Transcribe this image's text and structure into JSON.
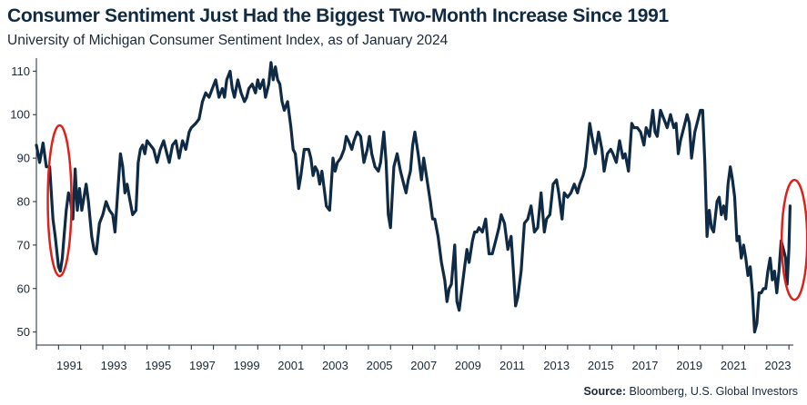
{
  "title": "Consumer Sentiment Just Had the Biggest Two-Month Increase Since 1991",
  "subtitle": "University of Michigan Consumer Sentiment Index, as of January 2024",
  "source": {
    "label": "Source:",
    "text": "Bloomberg, U.S. Global Investors"
  },
  "colors": {
    "line": "#0f2a44",
    "highlight": "#e0201b",
    "axis": "#1b2838"
  },
  "chart_data": {
    "type": "line",
    "title": "Consumer Sentiment Just Had the Biggest Two-Month Increase Since 1991",
    "subtitle": "University of Michigan Consumer Sentiment Index, as of January 2024",
    "xlabel": "",
    "ylabel": "",
    "xlim": [
      1990.0,
      2024.2
    ],
    "ylim": [
      47,
      113
    ],
    "y_ticks": [
      50,
      60,
      70,
      80,
      90,
      100,
      110
    ],
    "x_ticks": [
      1991,
      1993,
      1995,
      1997,
      1999,
      2001,
      2003,
      2005,
      2007,
      2009,
      2011,
      2013,
      2015,
      2017,
      2019,
      2021,
      2023
    ],
    "grid": false,
    "legend": "none",
    "series": [
      {
        "values": [
          [
            1990.0,
            93
          ],
          [
            1990.15,
            89
          ],
          [
            1990.3,
            93.5
          ],
          [
            1990.45,
            88
          ],
          [
            1990.6,
            88
          ],
          [
            1990.75,
            76
          ],
          [
            1990.85,
            72
          ],
          [
            1991.0,
            65
          ],
          [
            1991.08,
            64
          ],
          [
            1991.17,
            67
          ],
          [
            1991.25,
            72
          ],
          [
            1991.35,
            78
          ],
          [
            1991.45,
            82
          ],
          [
            1991.55,
            80
          ],
          [
            1991.65,
            76
          ],
          [
            1991.75,
            87.5
          ],
          [
            1991.85,
            78
          ],
          [
            1991.95,
            83
          ],
          [
            1992.05,
            78
          ],
          [
            1992.15,
            81
          ],
          [
            1992.25,
            84
          ],
          [
            1992.35,
            80
          ],
          [
            1992.5,
            72
          ],
          [
            1992.6,
            69
          ],
          [
            1992.7,
            68
          ],
          [
            1992.85,
            75
          ],
          [
            1993.0,
            77
          ],
          [
            1993.15,
            80
          ],
          [
            1993.3,
            78
          ],
          [
            1993.45,
            77
          ],
          [
            1993.55,
            73
          ],
          [
            1993.7,
            84
          ],
          [
            1993.8,
            91
          ],
          [
            1993.9,
            88
          ],
          [
            1994.0,
            82
          ],
          [
            1994.1,
            84
          ],
          [
            1994.2,
            81
          ],
          [
            1994.35,
            77
          ],
          [
            1994.5,
            78
          ],
          [
            1994.6,
            89
          ],
          [
            1994.7,
            92
          ],
          [
            1994.8,
            93
          ],
          [
            1994.9,
            91
          ],
          [
            1995.0,
            94
          ],
          [
            1995.15,
            93
          ],
          [
            1995.3,
            92
          ],
          [
            1995.45,
            89
          ],
          [
            1995.6,
            92
          ],
          [
            1995.75,
            94
          ],
          [
            1995.9,
            91
          ],
          [
            1996.0,
            89
          ],
          [
            1996.15,
            93
          ],
          [
            1996.3,
            94
          ],
          [
            1996.45,
            90
          ],
          [
            1996.6,
            94
          ],
          [
            1996.75,
            92
          ],
          [
            1996.9,
            96
          ],
          [
            1997.0,
            97
          ],
          [
            1997.2,
            98
          ],
          [
            1997.35,
            99
          ],
          [
            1997.5,
            103
          ],
          [
            1997.65,
            105
          ],
          [
            1997.8,
            104
          ],
          [
            1997.95,
            106
          ],
          [
            1998.1,
            108
          ],
          [
            1998.25,
            104
          ],
          [
            1998.4,
            106
          ],
          [
            1998.5,
            104
          ],
          [
            1998.6,
            108
          ],
          [
            1998.75,
            110
          ],
          [
            1998.85,
            106
          ],
          [
            1998.95,
            104
          ],
          [
            1999.1,
            108
          ],
          [
            1999.25,
            105
          ],
          [
            1999.4,
            103
          ],
          [
            1999.5,
            104
          ],
          [
            1999.6,
            106
          ],
          [
            1999.75,
            107
          ],
          [
            1999.9,
            105
          ],
          [
            2000.0,
            108
          ],
          [
            2000.1,
            106
          ],
          [
            2000.25,
            108
          ],
          [
            2000.35,
            104
          ],
          [
            2000.5,
            107
          ],
          [
            2000.6,
            112
          ],
          [
            2000.7,
            108
          ],
          [
            2000.8,
            111
          ],
          [
            2000.9,
            108
          ],
          [
            2001.0,
            107
          ],
          [
            2001.1,
            103
          ],
          [
            2001.2,
            101
          ],
          [
            2001.35,
            103
          ],
          [
            2001.5,
            97
          ],
          [
            2001.6,
            92
          ],
          [
            2001.7,
            91
          ],
          [
            2001.85,
            83
          ],
          [
            2001.95,
            86
          ],
          [
            2002.1,
            92
          ],
          [
            2002.3,
            92
          ],
          [
            2002.4,
            90
          ],
          [
            2002.5,
            86
          ],
          [
            2002.6,
            88
          ],
          [
            2002.7,
            87
          ],
          [
            2002.8,
            84
          ],
          [
            2002.9,
            87
          ],
          [
            2003.0,
            83
          ],
          [
            2003.1,
            79
          ],
          [
            2003.25,
            78
          ],
          [
            2003.4,
            90
          ],
          [
            2003.5,
            87
          ],
          [
            2003.6,
            89
          ],
          [
            2003.75,
            90
          ],
          [
            2003.9,
            92
          ],
          [
            2004.0,
            95
          ],
          [
            2004.1,
            94
          ],
          [
            2004.25,
            92
          ],
          [
            2004.35,
            94
          ],
          [
            2004.5,
            96
          ],
          [
            2004.65,
            95
          ],
          [
            2004.8,
            89
          ],
          [
            2004.95,
            92
          ],
          [
            2005.05,
            95
          ],
          [
            2005.15,
            91
          ],
          [
            2005.3,
            88
          ],
          [
            2005.45,
            87
          ],
          [
            2005.55,
            89
          ],
          [
            2005.7,
            96
          ],
          [
            2005.8,
            89
          ],
          [
            2005.9,
            77
          ],
          [
            2006.0,
            74
          ],
          [
            2006.15,
            88
          ],
          [
            2006.3,
            91
          ],
          [
            2006.45,
            87
          ],
          [
            2006.6,
            84
          ],
          [
            2006.7,
            82
          ],
          [
            2006.8,
            85
          ],
          [
            2006.9,
            87
          ],
          [
            2007.0,
            93
          ],
          [
            2007.1,
            96
          ],
          [
            2007.25,
            91
          ],
          [
            2007.4,
            85
          ],
          [
            2007.5,
            90
          ],
          [
            2007.65,
            85
          ],
          [
            2007.8,
            80
          ],
          [
            2007.9,
            76
          ],
          [
            2008.0,
            76
          ],
          [
            2008.15,
            72
          ],
          [
            2008.3,
            66
          ],
          [
            2008.45,
            62
          ],
          [
            2008.55,
            57
          ],
          [
            2008.65,
            60
          ],
          [
            2008.75,
            61
          ],
          [
            2008.9,
            70
          ],
          [
            2009.0,
            57
          ],
          [
            2009.1,
            55
          ],
          [
            2009.2,
            59
          ],
          [
            2009.35,
            65
          ],
          [
            2009.45,
            69
          ],
          [
            2009.55,
            66
          ],
          [
            2009.7,
            71
          ],
          [
            2009.8,
            73
          ],
          [
            2009.9,
            73
          ],
          [
            2010.0,
            74
          ],
          [
            2010.15,
            73
          ],
          [
            2010.3,
            76
          ],
          [
            2010.45,
            68
          ],
          [
            2010.6,
            68
          ],
          [
            2010.75,
            71
          ],
          [
            2010.9,
            74
          ],
          [
            2011.0,
            77
          ],
          [
            2011.15,
            75
          ],
          [
            2011.3,
            69
          ],
          [
            2011.45,
            72
          ],
          [
            2011.55,
            64
          ],
          [
            2011.65,
            56
          ],
          [
            2011.75,
            58
          ],
          [
            2011.9,
            64
          ],
          [
            2012.05,
            75
          ],
          [
            2012.2,
            76
          ],
          [
            2012.35,
            79
          ],
          [
            2012.5,
            73
          ],
          [
            2012.65,
            74
          ],
          [
            2012.8,
            82
          ],
          [
            2012.95,
            73
          ],
          [
            2013.05,
            76
          ],
          [
            2013.2,
            77
          ],
          [
            2013.35,
            84
          ],
          [
            2013.5,
            85
          ],
          [
            2013.6,
            82
          ],
          [
            2013.75,
            76
          ],
          [
            2013.85,
            82
          ],
          [
            2014.0,
            81
          ],
          [
            2014.15,
            82
          ],
          [
            2014.3,
            84
          ],
          [
            2014.45,
            82
          ],
          [
            2014.55,
            84
          ],
          [
            2014.7,
            86
          ],
          [
            2014.8,
            88
          ],
          [
            2014.9,
            93
          ],
          [
            2015.0,
            98
          ],
          [
            2015.1,
            95
          ],
          [
            2015.25,
            91
          ],
          [
            2015.4,
            96
          ],
          [
            2015.55,
            92
          ],
          [
            2015.65,
            87
          ],
          [
            2015.8,
            91
          ],
          [
            2015.95,
            92
          ],
          [
            2016.05,
            91
          ],
          [
            2016.2,
            89
          ],
          [
            2016.35,
            94
          ],
          [
            2016.5,
            90
          ],
          [
            2016.6,
            91
          ],
          [
            2016.75,
            87
          ],
          [
            2016.9,
            98
          ],
          [
            2017.0,
            97
          ],
          [
            2017.15,
            97
          ],
          [
            2017.3,
            96
          ],
          [
            2017.45,
            93
          ],
          [
            2017.55,
            97
          ],
          [
            2017.7,
            95
          ],
          [
            2017.85,
            101
          ],
          [
            2017.95,
            96
          ],
          [
            2018.05,
            95
          ],
          [
            2018.2,
            101
          ],
          [
            2018.35,
            99
          ],
          [
            2018.5,
            97
          ],
          [
            2018.65,
            100
          ],
          [
            2018.8,
            97
          ],
          [
            2018.9,
            98
          ],
          [
            2019.0,
            91
          ],
          [
            2019.1,
            94
          ],
          [
            2019.25,
            97
          ],
          [
            2019.4,
            100
          ],
          [
            2019.5,
            98
          ],
          [
            2019.6,
            90
          ],
          [
            2019.75,
            96
          ],
          [
            2019.9,
            99
          ],
          [
            2020.0,
            101
          ],
          [
            2020.1,
            101
          ],
          [
            2020.2,
            89
          ],
          [
            2020.3,
            72
          ],
          [
            2020.4,
            78
          ],
          [
            2020.5,
            74
          ],
          [
            2020.6,
            73
          ],
          [
            2020.75,
            80
          ],
          [
            2020.85,
            81
          ],
          [
            2020.95,
            77
          ],
          [
            2021.05,
            79
          ],
          [
            2021.15,
            76
          ],
          [
            2021.25,
            84
          ],
          [
            2021.35,
            88
          ],
          [
            2021.45,
            85
          ],
          [
            2021.55,
            81
          ],
          [
            2021.65,
            71
          ],
          [
            2021.75,
            72
          ],
          [
            2021.85,
            67
          ],
          [
            2021.95,
            70
          ],
          [
            2022.05,
            67
          ],
          [
            2022.15,
            63
          ],
          [
            2022.25,
            65
          ],
          [
            2022.35,
            59
          ],
          [
            2022.45,
            50
          ],
          [
            2022.55,
            52
          ],
          [
            2022.65,
            59
          ],
          [
            2022.75,
            59
          ],
          [
            2022.85,
            60
          ],
          [
            2022.95,
            60
          ],
          [
            2023.05,
            64
          ],
          [
            2023.15,
            67
          ],
          [
            2023.25,
            62
          ],
          [
            2023.35,
            64
          ],
          [
            2023.45,
            59
          ],
          [
            2023.55,
            64
          ],
          [
            2023.65,
            71
          ],
          [
            2023.75,
            69
          ],
          [
            2023.85,
            67
          ],
          [
            2023.92,
            61
          ],
          [
            2024.0,
            69
          ],
          [
            2024.05,
            79
          ]
        ]
      }
    ]
  }
}
